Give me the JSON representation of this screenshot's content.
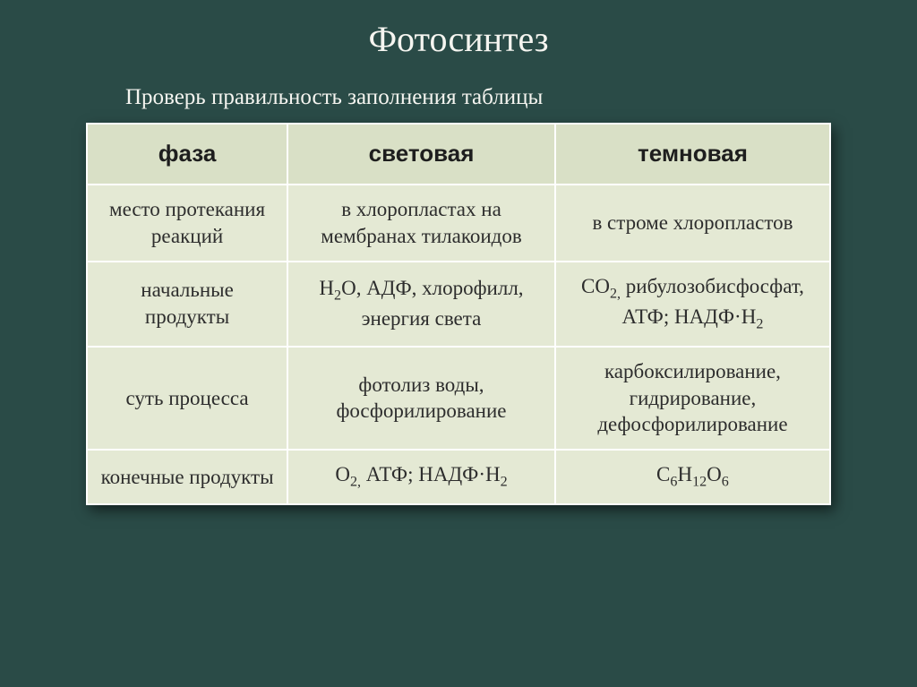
{
  "title": "Фотосинтез",
  "subtitle": "Проверь правильность заполнения таблицы",
  "headers": {
    "phase": "фаза",
    "light": "световая",
    "dark": "темновая"
  },
  "rows": {
    "location": {
      "label": "место протекания реакций",
      "light": "в хлоропластах на мембранах тилакоидов",
      "dark": "в строме хлоропластов"
    },
    "initial": {
      "label": "начальные продукты",
      "light_html": "H<sub>2</sub>O, АДФ, хлорофилл, энергия света",
      "dark_html": "CO<sub>2,</sub> рибулозобисфосфат, АТФ; НАДФ·H<sub>2</sub>"
    },
    "essence": {
      "label": "суть процесса",
      "light": "фотолиз воды, фосфорилирование",
      "dark": "карбоксилирование, гидрирование, дефосфорилирование"
    },
    "final": {
      "label": "конечные продукты",
      "light_html": "O<sub>2,</sub> АТФ; НАДФ·H<sub>2</sub>",
      "dark_html": "C<sub>6</sub>H<sub>12</sub>O<sub>6</sub>"
    }
  },
  "style": {
    "background": "#2a4b47",
    "table_bg": "#e4e9d4",
    "header_bg": "#d9e0c6",
    "border_color": "#ffffff",
    "title_color": "#f5f5f0",
    "text_color": "#2d2d2d",
    "title_fontsize": 40,
    "subtitle_fontsize": 25,
    "header_fontsize": 26,
    "cell_fontsize": 23
  }
}
